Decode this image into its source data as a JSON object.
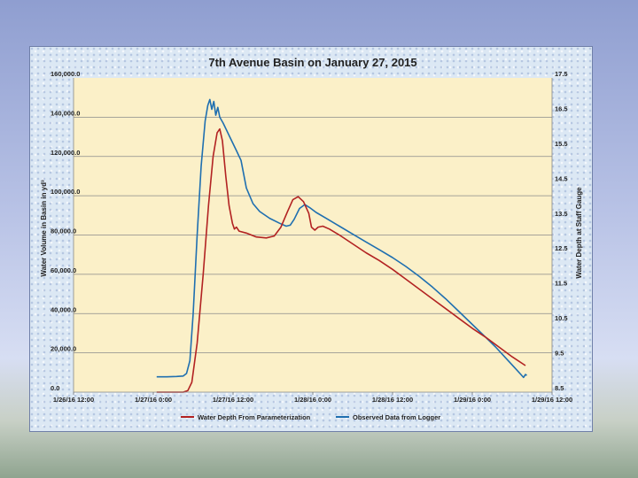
{
  "chart_data": {
    "type": "line",
    "title": "7th Avenue Basin on January 27, 2015",
    "ylabel": "Water Volume  in  Basin  in yd³",
    "y2label": "Water Depth at Staff Gauge",
    "ylim": [
      0,
      160000
    ],
    "y2lim": [
      8.5,
      17.5
    ],
    "y_ticks": [
      "0.0",
      "20,000.0",
      "40,000.0",
      "60,000.0",
      "80,000.0",
      "100,000.0",
      "120,000.0",
      "140,000.0",
      "160,000.0"
    ],
    "y2_ticks": [
      "8.5",
      "9.5",
      "10.5",
      "11.5",
      "12.5",
      "13.5",
      "14.5",
      "15.5",
      "16.5",
      "17.5"
    ],
    "x_ticks": [
      "1/26/16 12:00",
      "1/27/16 0:00",
      "1/27/16 12:00",
      "1/28/16 0:00",
      "1/28/16 12:00",
      "1/29/16 0:00",
      "1/29/16 12:00"
    ],
    "x_unit": "hours since 1/26/16 12:00",
    "xlim": [
      0,
      72
    ],
    "grid": "horizontal",
    "legend_position": "bottom",
    "series": [
      {
        "name": "Water Depth From Parameterization",
        "color": "#b22222",
        "axis": "left",
        "points": [
          [
            12.5,
            0
          ],
          [
            16.5,
            0
          ],
          [
            17.2,
            800
          ],
          [
            17.8,
            5000
          ],
          [
            18.6,
            25000
          ],
          [
            19.5,
            60000
          ],
          [
            20.3,
            95000
          ],
          [
            21.0,
            120000
          ],
          [
            21.6,
            132000
          ],
          [
            22.0,
            134000
          ],
          [
            22.4,
            128000
          ],
          [
            22.9,
            110000
          ],
          [
            23.4,
            95000
          ],
          [
            23.9,
            86000
          ],
          [
            24.2,
            83000
          ],
          [
            24.5,
            84000
          ],
          [
            24.9,
            82000
          ],
          [
            26,
            81000
          ],
          [
            27.5,
            79000
          ],
          [
            29,
            78500
          ],
          [
            30.2,
            79500
          ],
          [
            31.2,
            84000
          ],
          [
            32.2,
            92000
          ],
          [
            33.0,
            98000
          ],
          [
            33.8,
            99500
          ],
          [
            34.6,
            97000
          ],
          [
            35.4,
            91000
          ],
          [
            35.8,
            84000
          ],
          [
            36.3,
            82500
          ],
          [
            36.8,
            84000
          ],
          [
            37.5,
            84500
          ],
          [
            38.5,
            83000
          ],
          [
            40,
            80000
          ],
          [
            42,
            75500
          ],
          [
            44,
            71000
          ],
          [
            46,
            67000
          ],
          [
            48,
            62500
          ],
          [
            50,
            57500
          ],
          [
            52,
            52500
          ],
          [
            54,
            47500
          ],
          [
            56,
            42500
          ],
          [
            58,
            37500
          ],
          [
            60,
            32500
          ],
          [
            62,
            28000
          ],
          [
            64,
            23000
          ],
          [
            66,
            18000
          ],
          [
            68,
            13500
          ]
        ]
      },
      {
        "name": "Observed Data from Logger",
        "color": "#1f6fb0",
        "axis": "left",
        "points": [
          [
            12.5,
            7800
          ],
          [
            14,
            7800
          ],
          [
            15.5,
            8000
          ],
          [
            16.5,
            8200
          ],
          [
            17.0,
            9500
          ],
          [
            17.5,
            16000
          ],
          [
            18.0,
            40000
          ],
          [
            18.6,
            80000
          ],
          [
            19.2,
            115000
          ],
          [
            19.8,
            138000
          ],
          [
            20.2,
            146000
          ],
          [
            20.5,
            149000
          ],
          [
            20.8,
            144000
          ],
          [
            21.1,
            148000
          ],
          [
            21.4,
            141000
          ],
          [
            21.7,
            145000
          ],
          [
            22.0,
            140000
          ],
          [
            22.5,
            137000
          ],
          [
            23.5,
            130000
          ],
          [
            24.5,
            123000
          ],
          [
            25.2,
            118000
          ],
          [
            26.0,
            104000
          ],
          [
            27,
            96000
          ],
          [
            28,
            92000
          ],
          [
            29.5,
            88500
          ],
          [
            31.0,
            86000
          ],
          [
            32.0,
            84500
          ],
          [
            32.6,
            85000
          ],
          [
            33.2,
            88000
          ],
          [
            34.0,
            93500
          ],
          [
            34.8,
            95500
          ],
          [
            35.5,
            94000
          ],
          [
            36.5,
            91500
          ],
          [
            38,
            88500
          ],
          [
            40,
            84500
          ],
          [
            42,
            80500
          ],
          [
            44,
            76500
          ],
          [
            46,
            72500
          ],
          [
            48,
            68500
          ],
          [
            50,
            64000
          ],
          [
            52,
            59000
          ],
          [
            54,
            53500
          ],
          [
            56,
            47500
          ],
          [
            58,
            41000
          ],
          [
            60,
            34500
          ],
          [
            62,
            28000
          ],
          [
            63.5,
            23000
          ],
          [
            65,
            17500
          ],
          [
            66.5,
            12000
          ],
          [
            67.3,
            9000
          ],
          [
            67.7,
            7500
          ],
          [
            68.0,
            9000
          ],
          [
            68.2,
            8500
          ]
        ]
      }
    ]
  }
}
